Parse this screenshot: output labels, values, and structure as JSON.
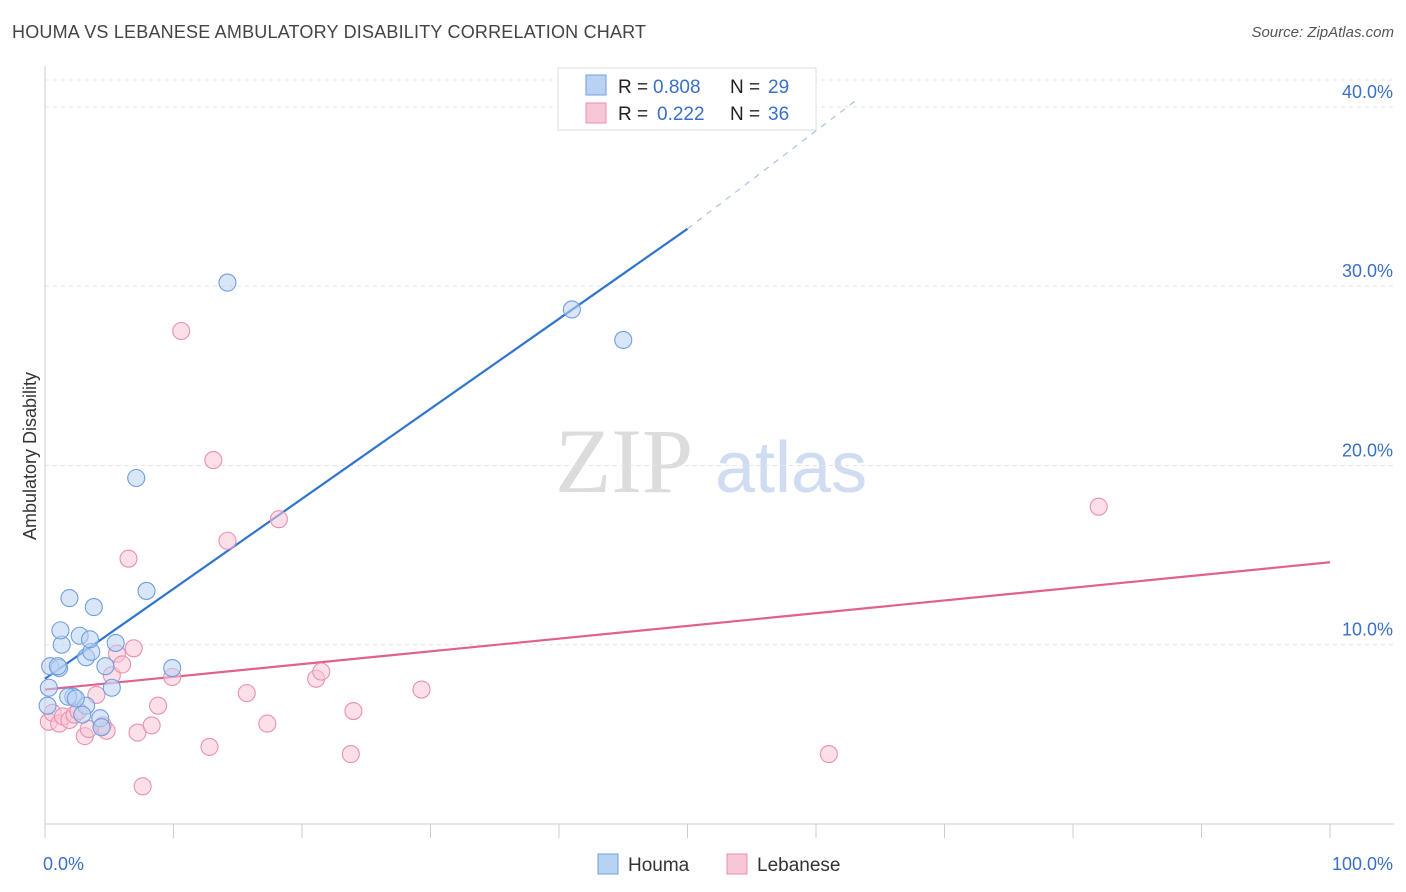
{
  "title": "HOUMA VS LEBANESE AMBULATORY DISABILITY CORRELATION CHART",
  "source": "Source: ZipAtlas.com",
  "watermark": {
    "zip": "ZIP",
    "atlas": "atlas"
  },
  "chart_data": {
    "type": "scatter",
    "ylabel": "Ambulatory Disability",
    "xlim": [
      0,
      100
    ],
    "ylim": [
      0,
      41.5
    ],
    "x_tick_labels": [
      "0.0%",
      "100.0%"
    ],
    "y_ticks": [
      10,
      20,
      30,
      40
    ],
    "y_tick_labels": [
      "10.0%",
      "20.0%",
      "30.0%",
      "40.0%"
    ],
    "grid": true,
    "legend": {
      "placement": "top-center",
      "entries": [
        {
          "r_label": "R =",
          "r_value": "0.808",
          "n_label": "N =",
          "n_value": "29"
        },
        {
          "r_label": "R =",
          "r_value": "0.222",
          "n_label": "N =",
          "n_value": "36"
        }
      ]
    },
    "series": [
      {
        "name": "Houma",
        "color": "#6f9fe0",
        "fill": "#b9d1f3",
        "line_color": "#2f74d0",
        "trend": {
          "x0": 0,
          "y0": 8.1,
          "x1": 50,
          "y1": 33.2,
          "x_dash_end": 63,
          "y_dash_end": 40.3
        },
        "points": [
          [
            0.4,
            8.8
          ],
          [
            0.3,
            7.6
          ],
          [
            0.2,
            6.6
          ],
          [
            1.1,
            8.7
          ],
          [
            1.3,
            10.0
          ],
          [
            1.2,
            10.8
          ],
          [
            1.9,
            12.6
          ],
          [
            2.2,
            7.1
          ],
          [
            1.8,
            7.1
          ],
          [
            2.7,
            10.5
          ],
          [
            3.2,
            9.3
          ],
          [
            3.6,
            9.6
          ],
          [
            3.5,
            10.3
          ],
          [
            3.8,
            12.1
          ],
          [
            3.2,
            6.6
          ],
          [
            2.9,
            6.1
          ],
          [
            4.3,
            5.9
          ],
          [
            4.4,
            5.4
          ],
          [
            4.7,
            8.8
          ],
          [
            5.2,
            7.6
          ],
          [
            5.5,
            10.1
          ],
          [
            7.1,
            19.3
          ],
          [
            7.9,
            13.0
          ],
          [
            9.9,
            8.7
          ],
          [
            14.2,
            30.2
          ],
          [
            41.0,
            28.7
          ],
          [
            45.0,
            27.0
          ],
          [
            1.0,
            8.8
          ],
          [
            2.4,
            7.0
          ]
        ]
      },
      {
        "name": "Lebanese",
        "color": "#ec8fb0",
        "fill": "#f7c6d7",
        "line_color": "#e0608f",
        "trend": {
          "x0": 0,
          "y0": 7.5,
          "x1": 100,
          "y1": 14.6
        },
        "points": [
          [
            0.3,
            5.7
          ],
          [
            0.6,
            6.2
          ],
          [
            1.1,
            5.6
          ],
          [
            1.4,
            6.0
          ],
          [
            1.9,
            5.8
          ],
          [
            2.3,
            6.1
          ],
          [
            2.6,
            6.3
          ],
          [
            3.1,
            4.9
          ],
          [
            3.4,
            5.3
          ],
          [
            4.0,
            7.2
          ],
          [
            4.5,
            5.5
          ],
          [
            4.8,
            5.2
          ],
          [
            5.2,
            8.3
          ],
          [
            5.6,
            9.5
          ],
          [
            6.0,
            8.9
          ],
          [
            6.5,
            14.8
          ],
          [
            6.9,
            9.8
          ],
          [
            7.2,
            5.1
          ],
          [
            7.6,
            2.1
          ],
          [
            8.3,
            5.5
          ],
          [
            8.8,
            6.6
          ],
          [
            9.9,
            8.2
          ],
          [
            10.6,
            27.5
          ],
          [
            12.8,
            4.3
          ],
          [
            13.1,
            20.3
          ],
          [
            14.2,
            15.8
          ],
          [
            15.7,
            7.3
          ],
          [
            17.3,
            5.6
          ],
          [
            18.2,
            17.0
          ],
          [
            21.1,
            8.1
          ],
          [
            21.5,
            8.5
          ],
          [
            23.8,
            3.9
          ],
          [
            24.0,
            6.3
          ],
          [
            29.3,
            7.5
          ],
          [
            61.0,
            3.9
          ],
          [
            82.0,
            17.7
          ]
        ]
      }
    ]
  }
}
